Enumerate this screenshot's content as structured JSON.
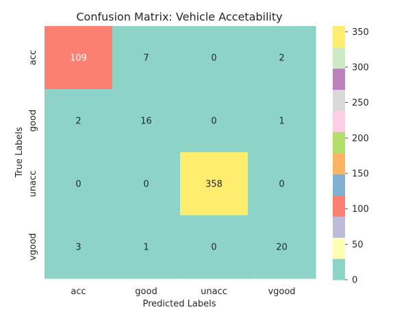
{
  "chart_data": {
    "type": "heatmap",
    "title": "Confusion Matrix: Vehicle Accetability",
    "xlabel": "Predicted Labels",
    "ylabel": "True Labels",
    "x_categories": [
      "acc",
      "good",
      "unacc",
      "vgood"
    ],
    "y_categories": [
      "acc",
      "good",
      "unacc",
      "vgood"
    ],
    "values": [
      [
        109,
        7,
        0,
        2
      ],
      [
        2,
        16,
        0,
        1
      ],
      [
        0,
        0,
        358,
        0
      ],
      [
        3,
        1,
        0,
        20
      ]
    ],
    "colorbar": {
      "range": [
        0,
        358
      ],
      "ticks": [
        0,
        50,
        100,
        150,
        200,
        250,
        300,
        350
      ],
      "colormap": "Set3",
      "colors": [
        "#8dd3c7",
        "#ffffb3",
        "#bebada",
        "#fb8072",
        "#80b1d3",
        "#fdb462",
        "#b3de69",
        "#fccde5",
        "#d9d9d9",
        "#bc80bd",
        "#ccebc5",
        "#ffed6f"
      ]
    }
  }
}
